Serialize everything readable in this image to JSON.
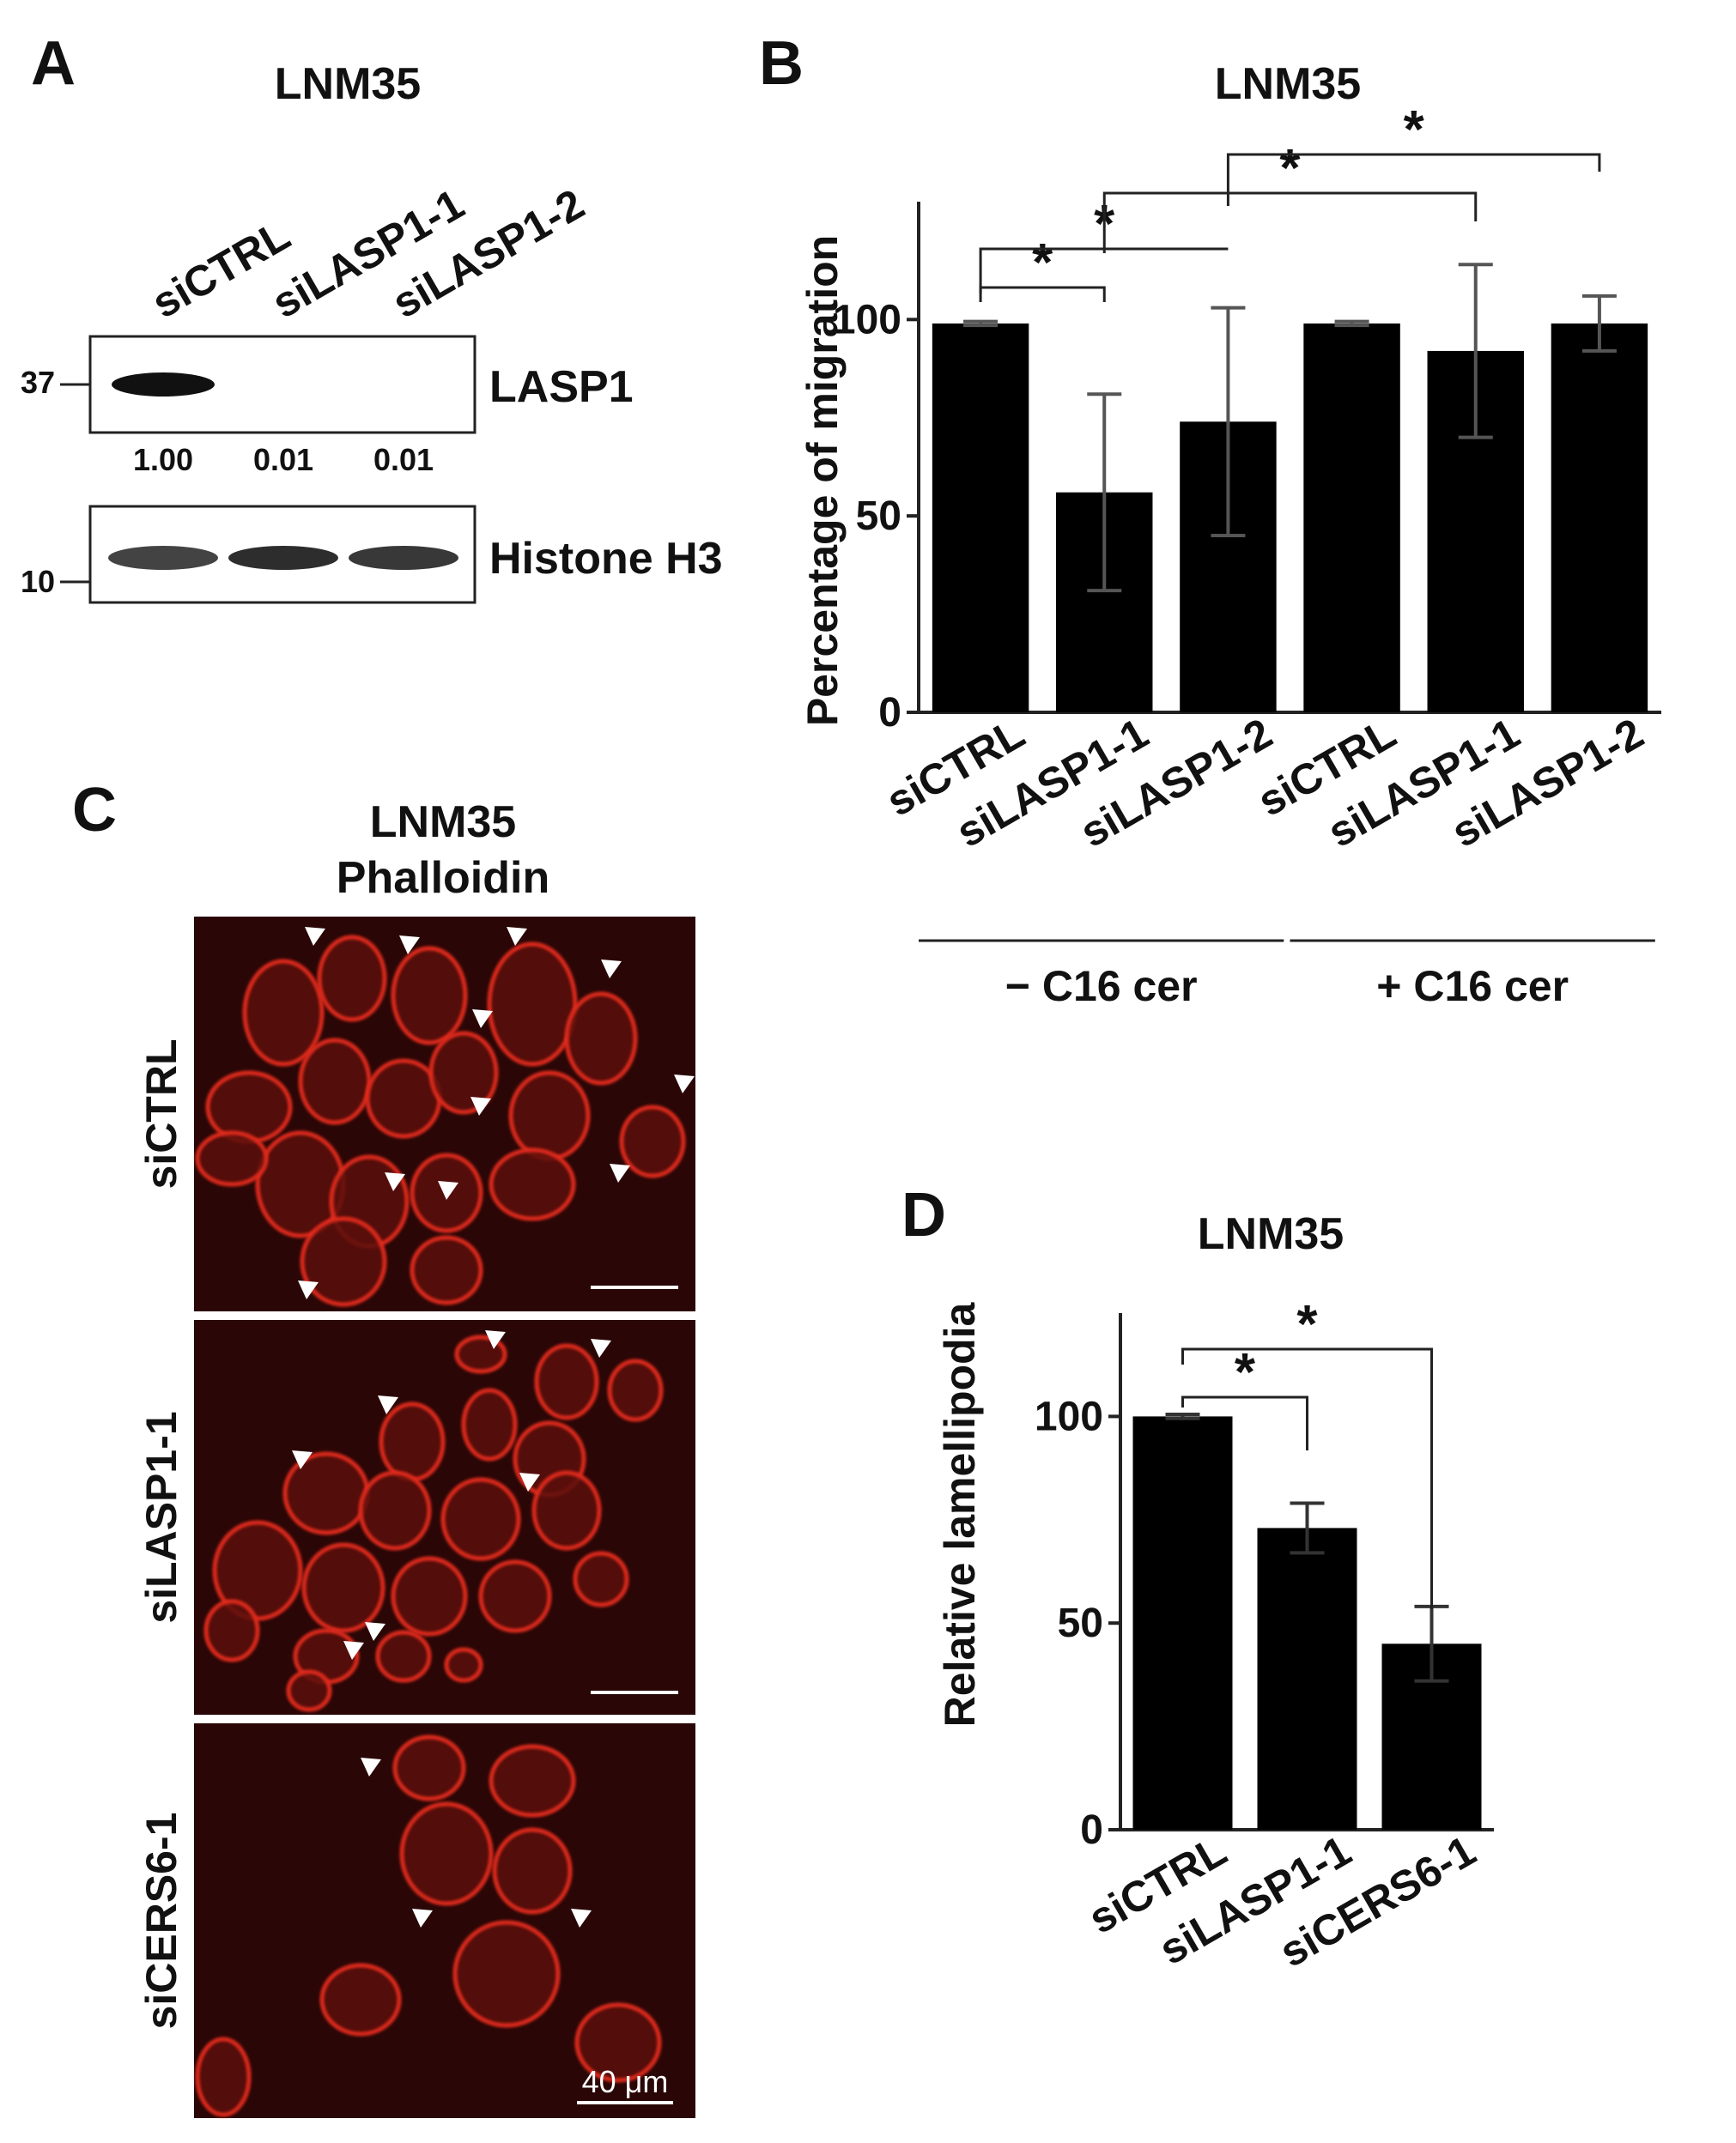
{
  "panels": {
    "A": {
      "letter": "A",
      "title": "LNM35",
      "lanes": [
        "siCTRL",
        "siLASP1-1",
        "siLASP1-2"
      ],
      "blots": [
        {
          "label": "LASP1",
          "marker": "37",
          "quant": [
            "1.00",
            "0.01",
            "0.01"
          ],
          "intensity": [
            1.0,
            0.01,
            0.01
          ]
        },
        {
          "label": "Histone H3",
          "marker": "10",
          "intensity": [
            0.85,
            0.95,
            0.9
          ]
        }
      ]
    },
    "C": {
      "letter": "C",
      "title_line1": "LNM35",
      "title_line2": "Phalloidin",
      "rows": [
        "siCTRL",
        "siLASP1-1",
        "siCERS6-1"
      ],
      "scale_label": "40 μm",
      "background_color": "#2a0606",
      "stain_color": "#e02a1c"
    }
  },
  "chart_data": [
    {
      "panel": "B",
      "letter": "B",
      "type": "bar",
      "title": "LNM35",
      "ylabel": "Percentage of migration",
      "xlabel": "",
      "ylim": [
        0,
        130
      ],
      "yticks": [
        0,
        50,
        100
      ],
      "categories": [
        "siCTRL",
        "siLASP1-1",
        "siLASP1-2",
        "siCTRL",
        "siLASP1-1",
        "siLASP1-2"
      ],
      "values": [
        99,
        56,
        74,
        99,
        92,
        99
      ],
      "errors": [
        0.5,
        25,
        29,
        0.5,
        22,
        7
      ],
      "groups": [
        {
          "label": "− C16 cer",
          "start": 0,
          "end": 2
        },
        {
          "label": "+ C16 cer",
          "start": 3,
          "end": 5
        }
      ],
      "significance": [
        {
          "a": 0,
          "b": 1,
          "label": "*"
        },
        {
          "a": 0,
          "b": 2,
          "label": "*"
        },
        {
          "a": 1,
          "b": 4,
          "label": "*"
        },
        {
          "a": 2,
          "b": 5,
          "label": "*"
        }
      ],
      "bar_color": "#000000",
      "error_color": "#555555"
    },
    {
      "panel": "D",
      "letter": "D",
      "type": "bar",
      "title": "LNM35",
      "ylabel": "Relative lamellipodia",
      "xlabel": "",
      "ylim": [
        0,
        125
      ],
      "yticks": [
        0,
        50,
        100
      ],
      "categories": [
        "siCTRL",
        "siLASP1-1",
        "siCERS6-1"
      ],
      "values": [
        100,
        73,
        45
      ],
      "errors": [
        0.5,
        6,
        9
      ],
      "significance": [
        {
          "a": 0,
          "b": 1,
          "label": "*"
        },
        {
          "a": 0,
          "b": 2,
          "label": "*"
        }
      ],
      "bar_color": "#000000",
      "error_color": "#333333"
    }
  ]
}
